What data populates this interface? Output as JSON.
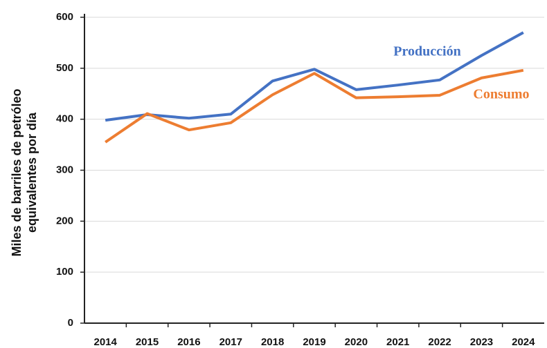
{
  "chart_data": {
    "type": "line",
    "ylabel": [
      "Miles de barriles de petróleo",
      "equivalentes por día"
    ],
    "categories": [
      "2014",
      "2015",
      "2016",
      "2017",
      "2018",
      "2019",
      "2020",
      "2021",
      "2022",
      "2023",
      "2024"
    ],
    "series": [
      {
        "name": "Producción",
        "color": "#4472c4",
        "values": [
          398,
          409,
          402,
          410,
          475,
          498,
          458,
          467,
          477,
          525,
          570
        ]
      },
      {
        "name": "Consumo",
        "color": "#ed7d31",
        "values": [
          355,
          411,
          379,
          393,
          448,
          490,
          442,
          444,
          447,
          481,
          496
        ]
      }
    ],
    "ylim": [
      0,
      600
    ],
    "yticks": [
      0,
      100,
      200,
      300,
      400,
      500,
      600
    ],
    "grid": true
  }
}
